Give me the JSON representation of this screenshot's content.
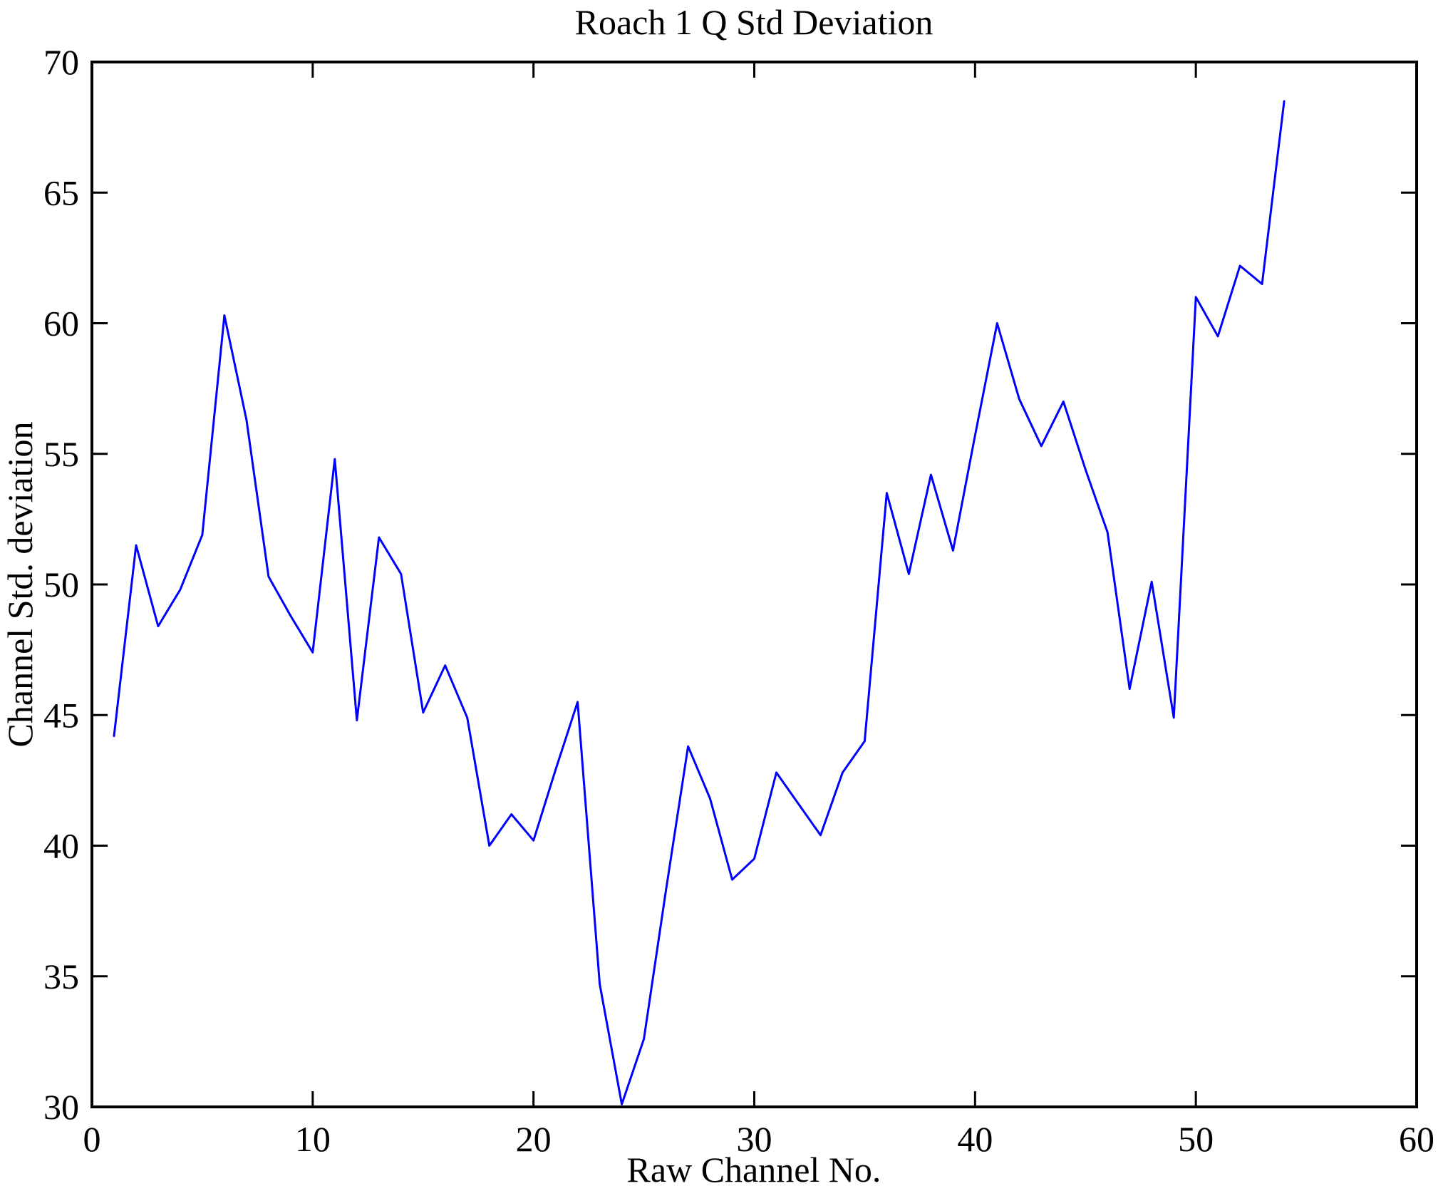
{
  "figure": {
    "background": "#ffffff",
    "axis_color": "#000000",
    "line_color": "#0000ff"
  },
  "chart_data": {
    "type": "line",
    "title": "Roach 1 Q Std Deviation",
    "xlabel": "Raw Channel No.",
    "ylabel": "Channel Std. deviation",
    "xlim": [
      0,
      60
    ],
    "ylim": [
      30,
      70
    ],
    "x_ticks": [
      0,
      10,
      20,
      30,
      40,
      50,
      60
    ],
    "y_ticks": [
      30,
      35,
      40,
      45,
      50,
      55,
      60,
      65,
      70
    ],
    "grid": false,
    "legend_position": "none",
    "series": [
      {
        "name": "Channel Std. deviation",
        "color": "#0000ff",
        "x": [
          1,
          2,
          3,
          4,
          5,
          6,
          7,
          8,
          9,
          10,
          11,
          12,
          13,
          14,
          15,
          16,
          17,
          18,
          19,
          20,
          21,
          22,
          23,
          24,
          25,
          26,
          27,
          28,
          29,
          30,
          31,
          32,
          33,
          34,
          35,
          36,
          37,
          38,
          39,
          40,
          41,
          42,
          43,
          44,
          45,
          46,
          47,
          48,
          49,
          50,
          51,
          52,
          53,
          54
        ],
        "y": [
          44.2,
          51.5,
          48.4,
          49.8,
          51.9,
          60.3,
          56.3,
          50.3,
          48.8,
          47.4,
          54.8,
          44.8,
          51.8,
          50.4,
          45.1,
          46.9,
          44.9,
          40.0,
          41.2,
          40.2,
          42.9,
          45.5,
          34.7,
          30.1,
          32.6,
          38.3,
          43.8,
          41.8,
          38.7,
          39.5,
          42.8,
          41.6,
          40.4,
          42.8,
          44.0,
          53.5,
          50.4,
          54.2,
          51.3,
          55.7,
          60.0,
          57.1,
          55.3,
          57.0,
          54.4,
          52.0,
          46.0,
          50.1,
          44.9,
          61.0,
          59.5,
          62.2,
          61.5,
          68.5
        ]
      }
    ]
  }
}
